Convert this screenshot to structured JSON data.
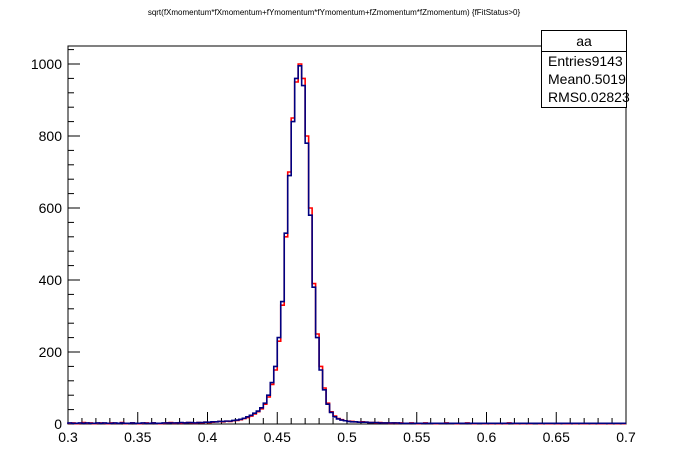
{
  "chart_data": {
    "type": "histogram",
    "title": "sqrt(fXmomentum*fXmomentum+fYmomentum*fYmomentum+fZmomentum*fZmomentum) {fFitStatus>0}",
    "xlabel": "",
    "ylabel": "",
    "xlim": [
      0.3,
      0.7
    ],
    "ylim": [
      0,
      1050
    ],
    "x_ticks": [
      "0.3",
      "0.35",
      "0.4",
      "0.45",
      "0.5",
      "0.55",
      "0.6",
      "0.65",
      "0.7"
    ],
    "y_ticks": [
      "0",
      "200",
      "400",
      "600",
      "800",
      "1000"
    ],
    "bin_width": 0.0025,
    "bin_start": 0.3,
    "series": [
      {
        "name": "",
        "color": "#ff0000",
        "values": [
          2,
          3,
          1,
          2,
          4,
          2,
          3,
          1,
          2,
          3,
          2,
          1,
          3,
          2,
          2,
          4,
          1,
          2,
          3,
          2,
          1,
          2,
          3,
          2,
          3,
          2,
          1,
          2,
          3,
          4,
          2,
          3,
          2,
          3,
          4,
          3,
          2,
          4,
          3,
          5,
          4,
          5,
          6,
          7,
          6,
          8,
          7,
          9,
          10,
          12,
          15,
          18,
          22,
          28,
          34,
          42,
          55,
          75,
          110,
          150,
          230,
          330,
          520,
          700,
          850,
          950,
          1000,
          960,
          800,
          600,
          390,
          250,
          160,
          100,
          58,
          34,
          22,
          15,
          12,
          9,
          8,
          7,
          6,
          5,
          6,
          5,
          4,
          4,
          3,
          4,
          3,
          3,
          2,
          3,
          2,
          3,
          2,
          2,
          3,
          2,
          1,
          2,
          3,
          2,
          2,
          1,
          2,
          2,
          3,
          2,
          2,
          1,
          2,
          2,
          3,
          2,
          1,
          2,
          2,
          1,
          2,
          1,
          2,
          1,
          2,
          1,
          3,
          2,
          1,
          2,
          1,
          2,
          1,
          2,
          2,
          1,
          2,
          1,
          1,
          2,
          1,
          2,
          1,
          1,
          2,
          1,
          2,
          1,
          1,
          2,
          1,
          2,
          1,
          1,
          2,
          1,
          2,
          1,
          2,
          1
        ],
        "style": "line"
      },
      {
        "name": "aa",
        "color": "#000080",
        "values": [
          3,
          2,
          2,
          3,
          2,
          3,
          2,
          2,
          3,
          2,
          3,
          2,
          2,
          3,
          2,
          3,
          2,
          2,
          3,
          2,
          2,
          3,
          2,
          2,
          3,
          2,
          2,
          3,
          3,
          3,
          3,
          3,
          4,
          3,
          4,
          4,
          3,
          4,
          4,
          5,
          5,
          6,
          6,
          7,
          7,
          8,
          8,
          10,
          11,
          13,
          16,
          20,
          24,
          30,
          36,
          45,
          58,
          80,
          115,
          160,
          240,
          340,
          530,
          690,
          840,
          960,
          995,
          940,
          780,
          580,
          380,
          240,
          150,
          95,
          55,
          32,
          20,
          14,
          11,
          9,
          7,
          6,
          6,
          5,
          5,
          5,
          4,
          4,
          4,
          3,
          3,
          3,
          3,
          3,
          3,
          2,
          2,
          2,
          2,
          2,
          2,
          2,
          2,
          2,
          2,
          2,
          2,
          2,
          2,
          2,
          2,
          2,
          2,
          2,
          2,
          2,
          2,
          2,
          2,
          2,
          2,
          2,
          2,
          2,
          2,
          2,
          2,
          2,
          2,
          2,
          2,
          2,
          2,
          2,
          2,
          2,
          2,
          2,
          2,
          2,
          2,
          2,
          2,
          2,
          2,
          2,
          2,
          2,
          2,
          2,
          2,
          2,
          2,
          2,
          2,
          2,
          2,
          2,
          2,
          2
        ],
        "style": "line"
      }
    ],
    "legend": {
      "name": "aa",
      "entries_label": "Entries",
      "entries_value": "9143",
      "mean_label": "Mean",
      "mean_value": "0.5019",
      "rms_label": "RMS",
      "rms_value": "0.02823",
      "placement": "top-right"
    }
  }
}
